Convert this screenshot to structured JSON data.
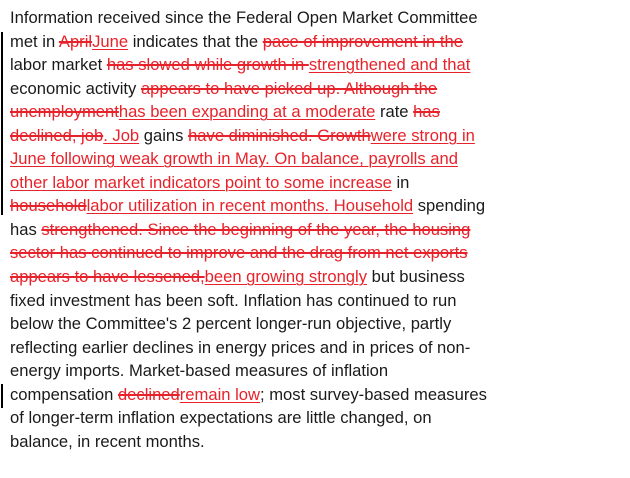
{
  "lines": [
    [
      [
        "n",
        "Information received since the Federal Open Market Committee"
      ]
    ],
    [
      [
        "n",
        "met in "
      ],
      [
        "d",
        "April"
      ],
      [
        "i",
        "June"
      ],
      [
        "n",
        " indicates that the "
      ],
      [
        "d",
        "pace of improvement in the"
      ]
    ],
    [
      [
        "n",
        "labor market "
      ],
      [
        "d",
        "has slowed while growth in "
      ],
      [
        "i",
        "strengthened and that"
      ]
    ],
    [
      [
        "n",
        "economic activity "
      ],
      [
        "d",
        "appears to have picked up. Although the"
      ]
    ],
    [
      [
        "d",
        "unemployment"
      ],
      [
        "i",
        "has been expanding at a moderate"
      ],
      [
        "n",
        " rate "
      ],
      [
        "d",
        "has"
      ]
    ],
    [
      [
        "d",
        "declined, job"
      ],
      [
        "i",
        ". Job"
      ],
      [
        "n",
        " gains "
      ],
      [
        "d",
        "have diminished. Growth"
      ],
      [
        "i",
        "were strong in"
      ]
    ],
    [
      [
        "i",
        "June following weak growth in May. On balance, payrolls and"
      ]
    ],
    [
      [
        "i",
        "other labor market indicators point to some increase"
      ],
      [
        "n",
        " in"
      ]
    ],
    [
      [
        "d",
        "household"
      ],
      [
        "i",
        "labor utilization in recent months. Household"
      ],
      [
        "n",
        " spending"
      ]
    ],
    [
      [
        "n",
        "has "
      ],
      [
        "d",
        "strengthened. Since the beginning of the year, the housing"
      ]
    ],
    [
      [
        "d",
        "sector has continued to improve and the drag from net exports"
      ]
    ],
    [
      [
        "d",
        "appears to have lessened,"
      ],
      [
        "i",
        "been growing strongly"
      ],
      [
        "n",
        " but business"
      ]
    ],
    [
      [
        "n",
        "fixed investment has been soft. Inflation has continued to run"
      ]
    ],
    [
      [
        "n",
        "below the Committee's 2 percent longer-run objective, partly"
      ]
    ],
    [
      [
        "n",
        "reflecting earlier declines in energy prices and in prices of non-"
      ]
    ],
    [
      [
        "n",
        "energy imports. Market-based measures of inflation"
      ]
    ],
    [
      [
        "n",
        "compensation "
      ],
      [
        "d",
        "declined"
      ],
      [
        "i",
        "remain low"
      ],
      [
        "n",
        "; most survey-based measures"
      ]
    ],
    [
      [
        "n",
        "of longer-term inflation expectations are little changed, on"
      ]
    ],
    [
      [
        "n",
        "balance, in recent months."
      ]
    ]
  ],
  "styles": {
    "text_color": "#1a1a1a",
    "change_color": "#e8222a"
  }
}
